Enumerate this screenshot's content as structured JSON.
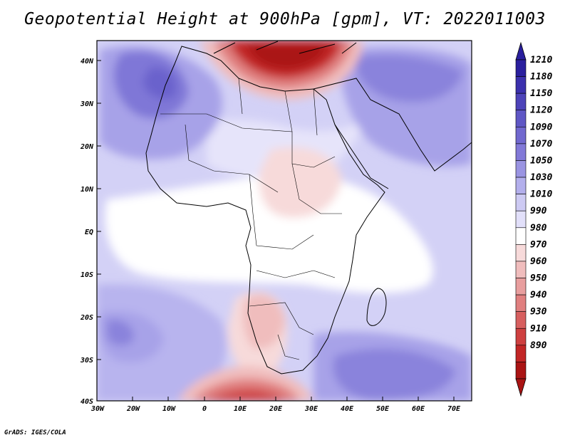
{
  "title": "Geopotential Height at 900hPa [gpm], VT: 2022011003",
  "credit": "GrADS: IGES/COLA",
  "axes": {
    "lat_labels": [
      "40N",
      "30N",
      "20N",
      "10N",
      "EQ",
      "10S",
      "20S",
      "30S",
      "40S"
    ],
    "lon_labels": [
      "30W",
      "20W",
      "10W",
      "0",
      "10E",
      "20E",
      "30E",
      "40E",
      "50E",
      "60E",
      "70E"
    ]
  },
  "colorbar": {
    "labels": [
      "1210",
      "1180",
      "1150",
      "1120",
      "1090",
      "1070",
      "1050",
      "1030",
      "1010",
      "990",
      "980",
      "970",
      "960",
      "950",
      "940",
      "930",
      "910",
      "890"
    ],
    "colors": [
      "#2a1f9e",
      "#3b30ad",
      "#4d43b9",
      "#5f57c5",
      "#7168cf",
      "#8279d8",
      "#9a94e2",
      "#b3afec",
      "#cdcaf3",
      "#e2e0fa",
      "#ffffff",
      "#f7dada",
      "#f0bdbd",
      "#e89e9e",
      "#e07f7f",
      "#d75f5f",
      "#ce4040",
      "#c22626",
      "#aa1414"
    ]
  }
}
